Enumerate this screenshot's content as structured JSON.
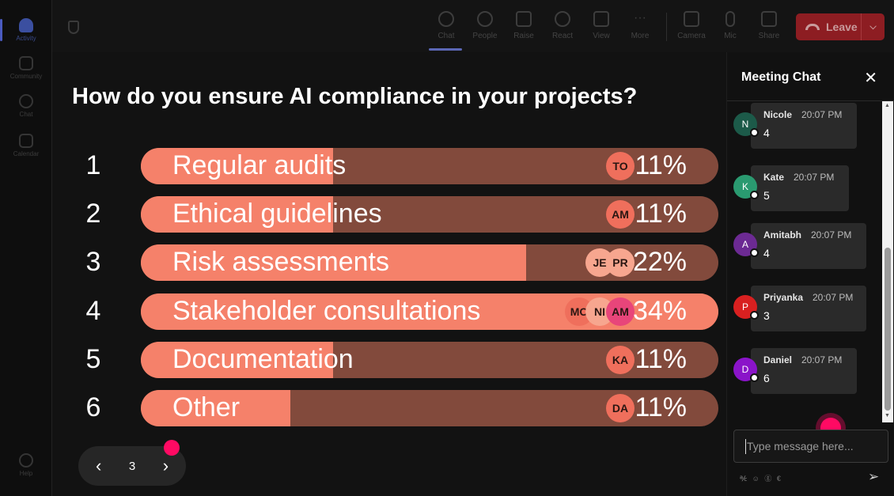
{
  "rail": {
    "items": [
      {
        "label": "Activity",
        "icon": "bell-icon"
      },
      {
        "label": "Community",
        "icon": "community-icon"
      },
      {
        "label": "Chat",
        "icon": "chat-icon"
      },
      {
        "label": "Calendar",
        "icon": "calendar-icon"
      },
      {
        "label": "Help",
        "icon": "help-icon"
      }
    ]
  },
  "toolbar": {
    "buttons": [
      {
        "label": "Chat",
        "icon": "chat-icon"
      },
      {
        "label": "People",
        "icon": "people-icon"
      },
      {
        "label": "Raise",
        "icon": "hand-icon"
      },
      {
        "label": "React",
        "icon": "smiley-icon"
      },
      {
        "label": "View",
        "icon": "grid-icon"
      },
      {
        "label": "More",
        "icon": "more-icon"
      },
      {
        "label": "Camera",
        "icon": "camera-off-icon"
      },
      {
        "label": "Mic",
        "icon": "mic-icon"
      },
      {
        "label": "Share",
        "icon": "share-icon"
      }
    ],
    "leave_label": "Leave",
    "chevron": "⌵"
  },
  "poll": {
    "question": "How do you ensure AI compliance in your projects?",
    "options": [
      {
        "num": "1",
        "label": "Regular audits",
        "pct": "11%",
        "fraction": 0.11,
        "avatars": [
          "TO"
        ]
      },
      {
        "num": "2",
        "label": "Ethical guidelines",
        "pct": "11%",
        "fraction": 0.11,
        "avatars": [
          "AM"
        ]
      },
      {
        "num": "3",
        "label": "Risk assessments",
        "pct": "22%",
        "fraction": 0.22,
        "avatars": [
          "PR",
          "JE"
        ]
      },
      {
        "num": "4",
        "label": "Stakeholder consultations",
        "pct": "34%",
        "fraction": 0.34,
        "avatars": [
          "AM",
          "NI",
          "MO"
        ]
      },
      {
        "num": "5",
        "label": "Documentation",
        "pct": "11%",
        "fraction": 0.11,
        "avatars": [
          "KA"
        ]
      },
      {
        "num": "6",
        "label": "Other",
        "pct": "11%",
        "fraction": 0.11,
        "avatars": [
          "DA"
        ]
      }
    ],
    "colors": {
      "fill": "#f5816a",
      "track": "#824a3c"
    }
  },
  "pager": {
    "prev": "‹",
    "page": "3",
    "next": "›"
  },
  "chat": {
    "title": "Meeting Chat",
    "close": "✕",
    "messages": [
      {
        "initial": "N",
        "name": "Nicole",
        "time": "20:07 PM",
        "text": "4",
        "color": "#1c5a49"
      },
      {
        "initial": "K",
        "name": "Kate",
        "time": "20:07 PM",
        "text": "5",
        "color": "#2a9a70"
      },
      {
        "initial": "A",
        "name": "Amitabh",
        "time": "20:07 PM",
        "text": "4",
        "color": "#6c2a93"
      },
      {
        "initial": "P",
        "name": "Priyanka",
        "time": "20:07 PM",
        "text": "3",
        "color": "#d82020"
      },
      {
        "initial": "D",
        "name": "Daniel",
        "time": "20:07 PM",
        "text": "6",
        "color": "#8a14c9"
      }
    ],
    "placeholder": "Type message here...",
    "tools": "℀ ☺ ⓖ €",
    "send": "➢"
  }
}
